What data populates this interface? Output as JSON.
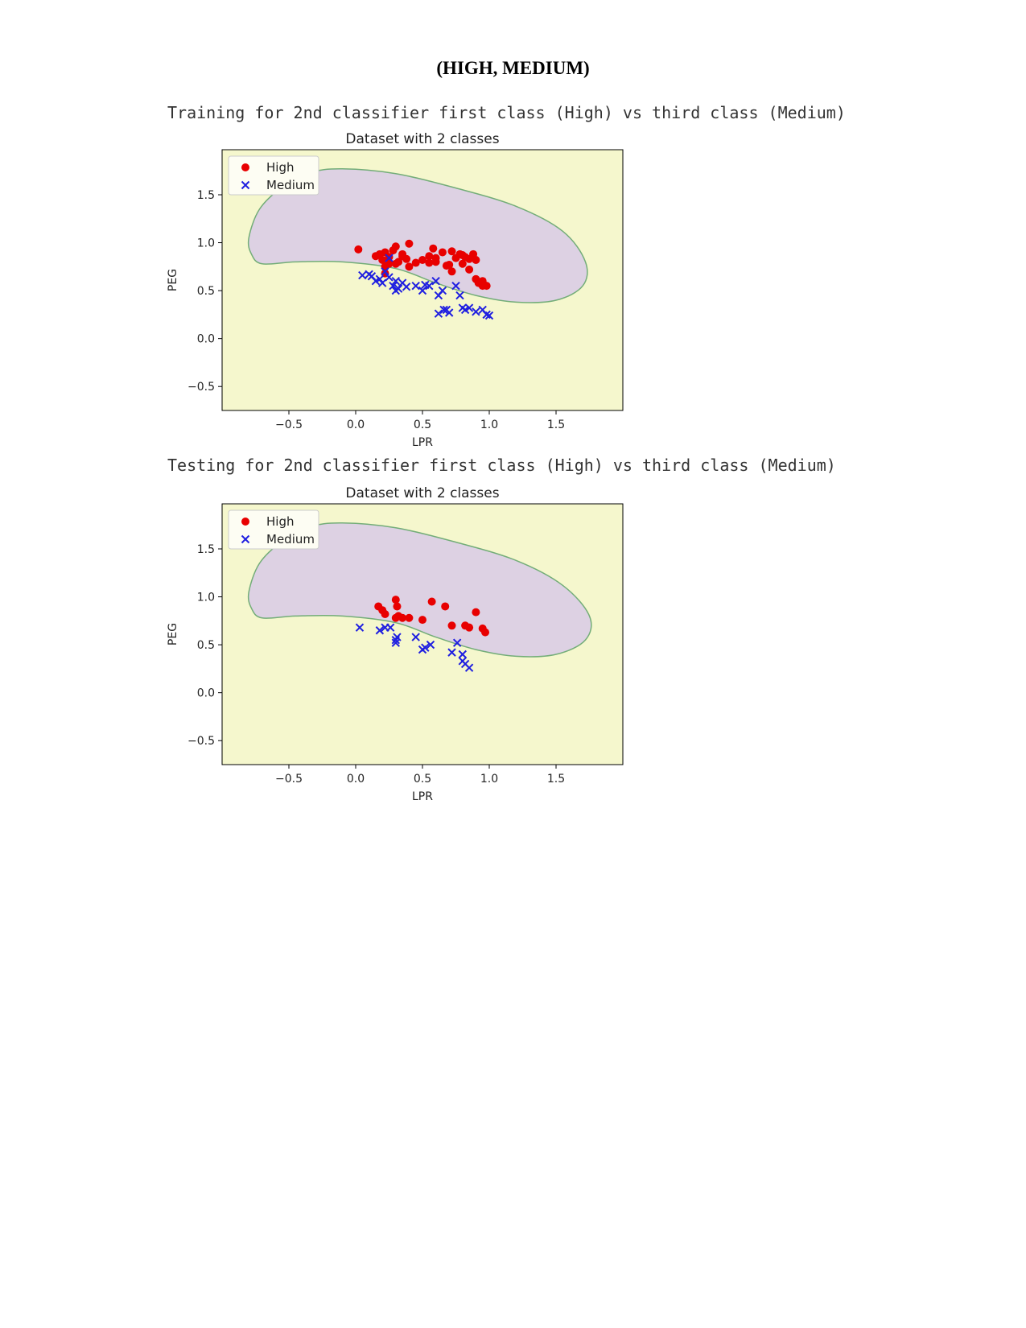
{
  "page": {
    "heading": "(HIGH, MEDIUM)"
  },
  "sections": [
    {
      "caption": "Training for 2nd classifier first class (High) vs third class (Medium)"
    },
    {
      "caption": "Testing for 2nd classifier first class (High) vs third class (Medium)"
    }
  ],
  "colors": {
    "region_outside": "#f5f7cd",
    "region_inside": "#ddd1e3",
    "boundary": "#73ad78",
    "high": "#e80000",
    "medium": "#1f1fe0"
  },
  "chart_data": [
    {
      "type": "scatter",
      "title": "Dataset with 2 classes",
      "xlabel": "LPR",
      "ylabel": "PEG",
      "xlim": [
        -1.0,
        2.0
      ],
      "ylim": [
        -0.75,
        1.97
      ],
      "xticks": [
        -0.5,
        0.0,
        0.5,
        1.0,
        1.5
      ],
      "xtick_labels": [
        "−0.5",
        "0.0",
        "0.5",
        "1.0",
        "1.5"
      ],
      "yticks": [
        -0.5,
        0.0,
        0.5,
        1.0,
        1.5
      ],
      "ytick_labels": [
        "−0.5",
        "0.0",
        "0.5",
        "1.0",
        "1.5"
      ],
      "legend_position": "top-left",
      "decision_boundary": [
        [
          -0.8,
          1.05
        ],
        [
          -0.72,
          1.35
        ],
        [
          -0.55,
          1.58
        ],
        [
          -0.35,
          1.73
        ],
        [
          -0.1,
          1.77
        ],
        [
          0.3,
          1.72
        ],
        [
          0.75,
          1.57
        ],
        [
          1.2,
          1.38
        ],
        [
          1.55,
          1.12
        ],
        [
          1.72,
          0.8
        ],
        [
          1.7,
          0.55
        ],
        [
          1.5,
          0.4
        ],
        [
          1.2,
          0.38
        ],
        [
          0.9,
          0.45
        ],
        [
          0.6,
          0.58
        ],
        [
          0.3,
          0.73
        ],
        [
          -0.1,
          0.8
        ],
        [
          -0.45,
          0.8
        ],
        [
          -0.7,
          0.78
        ],
        [
          -0.78,
          0.88
        ]
      ],
      "series": [
        {
          "name": "High",
          "marker": "circle",
          "x": [
            0.02,
            0.15,
            0.18,
            0.2,
            0.22,
            0.25,
            0.28,
            0.3,
            0.32,
            0.35,
            0.38,
            0.4,
            0.45,
            0.5,
            0.55,
            0.58,
            0.6,
            0.65,
            0.7,
            0.72,
            0.75,
            0.78,
            0.8,
            0.82,
            0.85,
            0.88,
            0.9,
            0.92,
            0.95,
            0.98,
            0.22,
            0.3,
            0.4,
            0.6,
            0.72,
            0.9,
            0.95,
            0.85,
            0.8,
            0.68,
            0.55,
            0.35,
            0.25,
            0.22
          ],
          "y": [
            0.93,
            0.86,
            0.88,
            0.82,
            0.9,
            0.85,
            0.92,
            0.96,
            0.8,
            0.88,
            0.83,
            0.99,
            0.79,
            0.82,
            0.86,
            0.94,
            0.8,
            0.9,
            0.77,
            0.91,
            0.84,
            0.88,
            0.78,
            0.85,
            0.72,
            0.88,
            0.62,
            0.58,
            0.6,
            0.55,
            0.68,
            0.78,
            0.75,
            0.84,
            0.7,
            0.82,
            0.55,
            0.83,
            0.87,
            0.76,
            0.79,
            0.86,
            0.78,
            0.75
          ]
        },
        {
          "name": "Medium",
          "marker": "x",
          "x": [
            0.05,
            0.1,
            0.12,
            0.15,
            0.18,
            0.2,
            0.22,
            0.25,
            0.28,
            0.3,
            0.32,
            0.35,
            0.38,
            0.45,
            0.5,
            0.52,
            0.55,
            0.6,
            0.62,
            0.65,
            0.68,
            0.75,
            0.78,
            0.8,
            0.82,
            0.85,
            0.9,
            0.95,
            0.98,
            1.0,
            0.62,
            0.66,
            0.7,
            0.3,
            0.25
          ],
          "y": [
            0.66,
            0.67,
            0.65,
            0.6,
            0.62,
            0.58,
            0.7,
            0.64,
            0.55,
            0.6,
            0.52,
            0.58,
            0.54,
            0.55,
            0.5,
            0.56,
            0.55,
            0.6,
            0.45,
            0.5,
            0.3,
            0.55,
            0.45,
            0.32,
            0.3,
            0.32,
            0.28,
            0.3,
            0.25,
            0.24,
            0.26,
            0.3,
            0.27,
            0.5,
            0.84
          ]
        }
      ]
    },
    {
      "type": "scatter",
      "title": "Dataset with 2 classes",
      "xlabel": "LPR",
      "ylabel": "PEG",
      "xlim": [
        -1.0,
        2.0
      ],
      "ylim": [
        -0.75,
        1.97
      ],
      "xticks": [
        -0.5,
        0.0,
        0.5,
        1.0,
        1.5
      ],
      "xtick_labels": [
        "−0.5",
        "0.0",
        "0.5",
        "1.0",
        "1.5"
      ],
      "yticks": [
        -0.5,
        0.0,
        0.5,
        1.0,
        1.5
      ],
      "ytick_labels": [
        "−0.5",
        "0.0",
        "0.5",
        "1.0",
        "1.5"
      ],
      "legend_position": "top-left",
      "decision_boundary": [
        [
          -0.8,
          1.05
        ],
        [
          -0.72,
          1.35
        ],
        [
          -0.55,
          1.58
        ],
        [
          -0.35,
          1.73
        ],
        [
          -0.1,
          1.77
        ],
        [
          0.3,
          1.72
        ],
        [
          0.75,
          1.57
        ],
        [
          1.2,
          1.38
        ],
        [
          1.55,
          1.12
        ],
        [
          1.75,
          0.8
        ],
        [
          1.72,
          0.55
        ],
        [
          1.5,
          0.4
        ],
        [
          1.2,
          0.38
        ],
        [
          0.9,
          0.45
        ],
        [
          0.6,
          0.58
        ],
        [
          0.3,
          0.73
        ],
        [
          -0.1,
          0.8
        ],
        [
          -0.45,
          0.8
        ],
        [
          -0.7,
          0.78
        ],
        [
          -0.78,
          0.88
        ]
      ],
      "series": [
        {
          "name": "High",
          "marker": "circle",
          "x": [
            0.17,
            0.2,
            0.22,
            0.3,
            0.31,
            0.3,
            0.32,
            0.35,
            0.4,
            0.5,
            0.57,
            0.67,
            0.72,
            0.82,
            0.85,
            0.9,
            0.95,
            0.97
          ],
          "y": [
            0.9,
            0.86,
            0.82,
            0.97,
            0.9,
            0.78,
            0.8,
            0.78,
            0.78,
            0.76,
            0.95,
            0.9,
            0.7,
            0.7,
            0.68,
            0.84,
            0.67,
            0.63
          ],
          "note": ""
        },
        {
          "name": "Medium",
          "marker": "x",
          "x": [
            0.03,
            0.18,
            0.22,
            0.26,
            0.3,
            0.3,
            0.31,
            0.45,
            0.5,
            0.52,
            0.56,
            0.72,
            0.76,
            0.8,
            0.8,
            0.82,
            0.85
          ],
          "y": [
            0.68,
            0.65,
            0.68,
            0.68,
            0.55,
            0.52,
            0.58,
            0.58,
            0.45,
            0.47,
            0.5,
            0.42,
            0.52,
            0.4,
            0.33,
            0.3,
            0.26
          ]
        }
      ]
    }
  ]
}
